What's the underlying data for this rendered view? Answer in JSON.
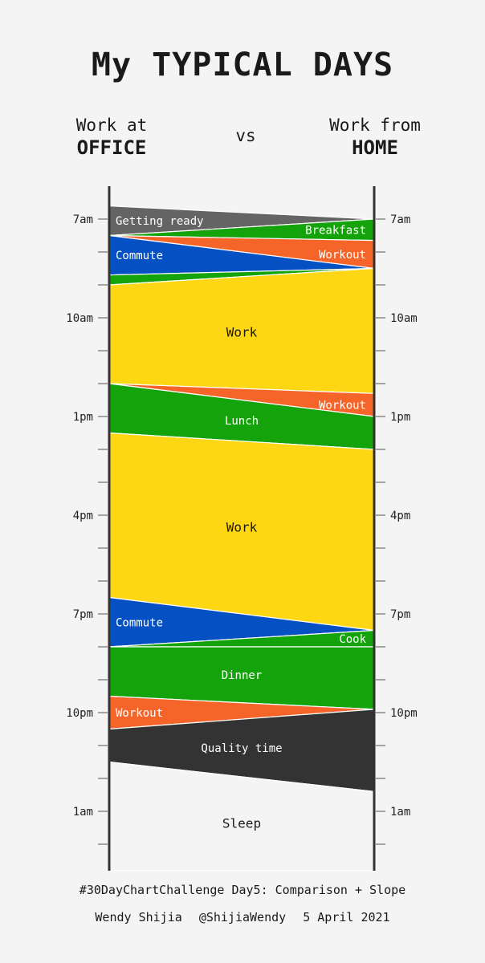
{
  "title": "My TYPICAL DAYS",
  "header": {
    "left": {
      "line1": "Work at",
      "line2": "OFFICE"
    },
    "vs": "vs",
    "right": {
      "line1": "Work from",
      "line2": "HOME"
    }
  },
  "footer": {
    "line1": "#30DayChartChallenge Day5: Comparison + Slope",
    "author": "Wendy Shijia",
    "handle": "@ShijiaWendy",
    "date": "5 April 2021"
  },
  "colors": {
    "getting_ready": "#646464",
    "breakfast": "#14a30a",
    "workout": "#f5652a",
    "commute": "#0551c4",
    "work": "#fdd614",
    "lunch": "#14a30a",
    "cook": "#14a30a",
    "dinner": "#14a30a",
    "quality_time": "#333333",
    "sleep": "#f4f4f4",
    "axis": "#333333"
  },
  "chart_data": {
    "type": "slope-area",
    "y_unit": "hours",
    "ylim": [
      6,
      27
    ],
    "tick_step_hours": 1,
    "tick_labels": [
      {
        "hour": 7,
        "label": "7am"
      },
      {
        "hour": 10,
        "label": "10am"
      },
      {
        "hour": 13,
        "label": "1pm"
      },
      {
        "hour": 16,
        "label": "4pm"
      },
      {
        "hour": 19,
        "label": "7pm"
      },
      {
        "hour": 22,
        "label": "10pm"
      },
      {
        "hour": 25,
        "label": "1am"
      }
    ],
    "left_axis": "Work at OFFICE",
    "right_axis": "Work from HOME",
    "segments": [
      {
        "label": "Getting ready",
        "color_key": "getting_ready",
        "left": [
          6.6,
          7.5
        ],
        "right": [
          7.0,
          7.0
        ],
        "label_side": "left",
        "label_color": "#ffffff"
      },
      {
        "label": "Breakfast",
        "color_key": "breakfast",
        "left": [
          7.5,
          7.5
        ],
        "right": [
          7.0,
          7.65
        ],
        "label_side": "right",
        "label_color": "#ffffff"
      },
      {
        "label": "Workout",
        "color_key": "workout",
        "left": [
          7.5,
          7.5
        ],
        "right": [
          7.65,
          8.5
        ],
        "label_side": "right",
        "label_color": "#ffffff"
      },
      {
        "label": "Commute",
        "color_key": "commute",
        "left": [
          7.5,
          8.7
        ],
        "right": [
          8.5,
          8.5
        ],
        "label_side": "left",
        "label_color": "#ffffff"
      },
      {
        "label": "",
        "color_key": "breakfast",
        "left": [
          8.7,
          9.0
        ],
        "right": [
          8.5,
          8.5
        ],
        "label_side": "none",
        "label_color": "#ffffff"
      },
      {
        "label": "Work",
        "color_key": "work",
        "left": [
          9.0,
          12.0
        ],
        "right": [
          8.5,
          12.3
        ],
        "label_side": "center",
        "label_color": "#1a1a1a"
      },
      {
        "label": "Workout",
        "color_key": "workout",
        "left": [
          12.0,
          12.0
        ],
        "right": [
          12.3,
          13.0
        ],
        "label_side": "right",
        "label_color": "#ffffff"
      },
      {
        "label": "Lunch",
        "color_key": "lunch",
        "left": [
          12.0,
          13.5
        ],
        "right": [
          13.0,
          14.0
        ],
        "label_side": "center",
        "label_color": "#ffffff"
      },
      {
        "label": "Work",
        "color_key": "work",
        "left": [
          13.5,
          18.5
        ],
        "right": [
          14.0,
          19.5
        ],
        "label_side": "center",
        "label_color": "#1a1a1a"
      },
      {
        "label": "Commute",
        "color_key": "commute",
        "left": [
          18.5,
          20.0
        ],
        "right": [
          19.5,
          19.5
        ],
        "label_side": "left",
        "label_color": "#ffffff"
      },
      {
        "label": "Cook",
        "color_key": "cook",
        "left": [
          20.0,
          20.0
        ],
        "right": [
          19.5,
          20.0
        ],
        "label_side": "right",
        "label_color": "#ffffff"
      },
      {
        "label": "Dinner",
        "color_key": "dinner",
        "left": [
          20.0,
          21.5
        ],
        "right": [
          20.0,
          21.9
        ],
        "label_side": "center",
        "label_color": "#ffffff"
      },
      {
        "label": "Workout",
        "color_key": "workout",
        "left": [
          21.5,
          22.5
        ],
        "right": [
          21.9,
          21.9
        ],
        "label_side": "left",
        "label_color": "#ffffff"
      },
      {
        "label": "Quality time",
        "color_key": "quality_time",
        "left": [
          22.5,
          23.5
        ],
        "right": [
          21.9,
          24.4
        ],
        "label_side": "center",
        "label_color": "#ffffff"
      },
      {
        "label": "Sleep",
        "color_key": "sleep",
        "left": [
          23.5,
          26.8
        ],
        "right": [
          24.4,
          26.8
        ],
        "label_side": "center",
        "label_color": "#1a1a1a"
      }
    ]
  }
}
